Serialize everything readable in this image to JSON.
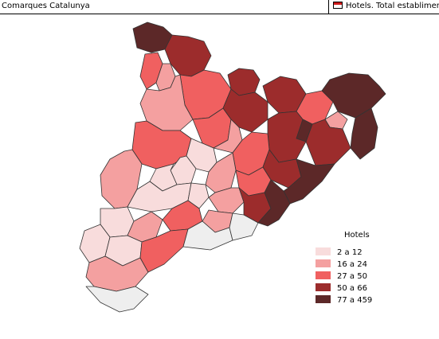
{
  "header": {
    "map_title": "Comarques Catalunya",
    "layer_label": "Hotels. Total establiments"
  },
  "legend": {
    "title": "Hotels",
    "classes": [
      {
        "label": "2 a 12",
        "color": "#f8dcdc"
      },
      {
        "label": "16 a 24",
        "color": "#f4a0a0"
      },
      {
        "label": "27 a 50",
        "color": "#f06060"
      },
      {
        "label": "50 a 66",
        "color": "#9c2c2c"
      },
      {
        "label": "77 a 459",
        "color": "#5c2828"
      }
    ]
  },
  "regions": [
    {
      "cls": 4
    },
    {
      "cls": 3
    },
    {
      "cls": 2
    },
    {
      "cls": 1
    },
    {
      "cls": 2
    },
    {
      "cls": 3
    },
    {
      "cls": 3
    },
    {
      "cls": 2
    },
    {
      "cls": 4
    },
    {
      "cls": 4
    },
    {
      "cls": 1
    },
    {
      "cls": 1
    },
    {
      "cls": 2
    },
    {
      "cls": 3
    },
    {
      "cls": 1
    },
    {
      "cls": 2
    },
    {
      "cls": 3
    },
    {
      "cls": 3
    },
    {
      "cls": 4
    },
    {
      "cls": 2
    },
    {
      "cls": 0
    },
    {
      "cls": 0
    },
    {
      "cls": 0
    },
    {
      "cls": 1
    },
    {
      "cls": 1
    },
    {
      "cls": 2
    },
    {
      "cls": 3
    },
    {
      "cls": 4
    },
    {
      "cls": 0
    },
    {
      "cls": 0
    },
    {
      "cls": 1
    },
    {
      "cls": 3
    },
    {
      "cls": 4
    },
    {
      "cls": 0
    },
    {
      "cls": 1
    },
    {
      "cls": 2
    },
    {
      "cls": 1
    },
    {
      "cls": 0
    },
    {
      "cls": 0
    },
    {
      "cls": 1
    },
    {
      "cls": 2
    }
  ]
}
